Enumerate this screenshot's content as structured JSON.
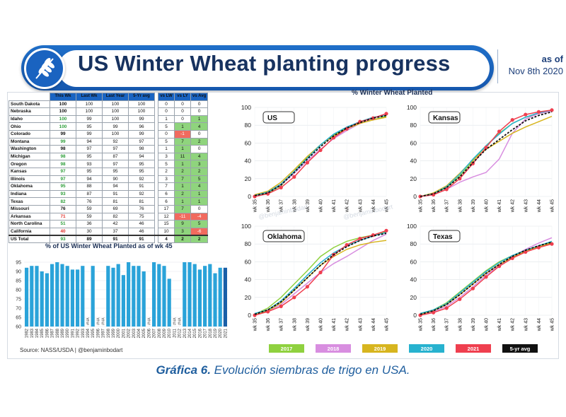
{
  "header": {
    "title": "US Winter Wheat planting progress",
    "asof_line1": "as of",
    "asof_line2": "Nov 8th 2020"
  },
  "table": {
    "headers": [
      "This Wk",
      "Last Wk",
      "Last Year",
      "5-Yr avg",
      "vs LW",
      "vs LY",
      "vs Avg"
    ],
    "rows": [
      {
        "state": "South Dakota",
        "this_wk": "100",
        "last_wk": "100",
        "last_year": "100",
        "avg": "100",
        "vs_lw": "0",
        "vs_ly": "0",
        "vs_avg": "0"
      },
      {
        "state": "Nebraska",
        "this_wk": "100",
        "last_wk": "100",
        "last_year": "100",
        "avg": "100",
        "vs_lw": "0",
        "vs_ly": "0",
        "vs_avg": "0"
      },
      {
        "state": "Idaho",
        "this_wk": "100",
        "last_wk": "99",
        "last_year": "100",
        "avg": "99",
        "vs_lw": "1",
        "vs_ly": "0",
        "vs_avg": "1"
      },
      {
        "state": "Ohio",
        "this_wk": "100",
        "last_wk": "95",
        "last_year": "99",
        "avg": "96",
        "vs_lw": "5",
        "vs_ly": "1",
        "vs_avg": "4"
      },
      {
        "state": "Colorado",
        "this_wk": "99",
        "last_wk": "99",
        "last_year": "100",
        "avg": "99",
        "vs_lw": "0",
        "vs_ly": "-1",
        "vs_avg": "0"
      },
      {
        "state": "Montana",
        "this_wk": "99",
        "last_wk": "94",
        "last_year": "92",
        "avg": "97",
        "vs_lw": "5",
        "vs_ly": "7",
        "vs_avg": "2"
      },
      {
        "state": "Washington",
        "this_wk": "98",
        "last_wk": "97",
        "last_year": "97",
        "avg": "98",
        "vs_lw": "1",
        "vs_ly": "1",
        "vs_avg": "0"
      },
      {
        "state": "Michigan",
        "this_wk": "98",
        "last_wk": "95",
        "last_year": "87",
        "avg": "94",
        "vs_lw": "3",
        "vs_ly": "11",
        "vs_avg": "4"
      },
      {
        "state": "Oregon",
        "this_wk": "98",
        "last_wk": "93",
        "last_year": "97",
        "avg": "95",
        "vs_lw": "5",
        "vs_ly": "1",
        "vs_avg": "3"
      },
      {
        "state": "Kansas",
        "this_wk": "97",
        "last_wk": "95",
        "last_year": "95",
        "avg": "95",
        "vs_lw": "2",
        "vs_ly": "2",
        "vs_avg": "2"
      },
      {
        "state": "Illinois",
        "this_wk": "97",
        "last_wk": "94",
        "last_year": "90",
        "avg": "92",
        "vs_lw": "3",
        "vs_ly": "7",
        "vs_avg": "5"
      },
      {
        "state": "Oklahoma",
        "this_wk": "95",
        "last_wk": "88",
        "last_year": "94",
        "avg": "91",
        "vs_lw": "7",
        "vs_ly": "1",
        "vs_avg": "4"
      },
      {
        "state": "Indiana",
        "this_wk": "93",
        "last_wk": "87",
        "last_year": "91",
        "avg": "92",
        "vs_lw": "6",
        "vs_ly": "2",
        "vs_avg": "1"
      },
      {
        "state": "Texas",
        "this_wk": "82",
        "last_wk": "76",
        "last_year": "81",
        "avg": "81",
        "vs_lw": "6",
        "vs_ly": "1",
        "vs_avg": "1"
      },
      {
        "state": "Missouri",
        "this_wk": "76",
        "last_wk": "59",
        "last_year": "69",
        "avg": "76",
        "vs_lw": "17",
        "vs_ly": "7",
        "vs_avg": "0"
      },
      {
        "state": "Arkansas",
        "this_wk": "71",
        "last_wk": "59",
        "last_year": "82",
        "avg": "75",
        "vs_lw": "12",
        "vs_ly": "-11",
        "vs_avg": "-4"
      },
      {
        "state": "North Carolina",
        "this_wk": "51",
        "last_wk": "36",
        "last_year": "42",
        "avg": "46",
        "vs_lw": "15",
        "vs_ly": "9",
        "vs_avg": "5"
      },
      {
        "state": "California",
        "this_wk": "40",
        "last_wk": "30",
        "last_year": "37",
        "avg": "46",
        "vs_lw": "10",
        "vs_ly": "3",
        "vs_avg": "-6"
      }
    ],
    "total": {
      "state": "US Total",
      "this_wk": "93",
      "last_wk": "89",
      "last_year": "91",
      "avg": "91",
      "vs_lw": "4",
      "vs_ly": "2",
      "vs_avg": "2"
    }
  },
  "colors": {
    "bar": "#2aa3d9",
    "bar_last": "#1a5fa8",
    "pos": "#8fd47d",
    "neg": "#f16a5e",
    "tw_green": "#2e9e3a",
    "tw_red": "#e0302a",
    "s2017": "#8fd13f",
    "s2018": "#d88ee0",
    "s2019": "#d7b51f",
    "s2020": "#27b2cf",
    "s2021": "#ef3f4f",
    "avg": "#111111"
  },
  "bar_title": "% of US Winter Wheat Planted as of wk 45",
  "source": "Source: NASS/USDA | @benjaminbodart",
  "chart_title": "% Winter Wheat Planted",
  "caption_bold": "Gráfica 6.",
  "caption_rest": " Evolución siembras de trigo en USA.",
  "watermark": "@benjaminbodart",
  "chart_data": [
    {
      "type": "bar",
      "title": "% of US Winter Wheat Planted as of wk 45",
      "ylim": [
        60,
        100
      ],
      "yticks": [
        60,
        65,
        70,
        75,
        80,
        85,
        90,
        95
      ],
      "categories": [
        "1982",
        "1983",
        "1984",
        "1985",
        "1986",
        "1987",
        "1988",
        "1989",
        "1990",
        "1991",
        "1992",
        "1993",
        "1994",
        "1995",
        "1996",
        "1997",
        "1998",
        "1999",
        "2000",
        "2001",
        "2002",
        "2003",
        "2004",
        "2005",
        "2006",
        "2007",
        "2008",
        "2009",
        "2010",
        "2011",
        "2012",
        "2013",
        "2014",
        "2015",
        "2016",
        "2017",
        "2018",
        "2019",
        "2020",
        "2021"
      ],
      "values": [
        92,
        93,
        93,
        90,
        89,
        94,
        95,
        94,
        93,
        91,
        91,
        93,
        null,
        93,
        null,
        null,
        93,
        92,
        94,
        88,
        95,
        93,
        93,
        90,
        null,
        95,
        94,
        93,
        86,
        null,
        null,
        95,
        95,
        94,
        91,
        93,
        94,
        89,
        92,
        92
      ],
      "na_label": "#NA"
    },
    {
      "type": "line",
      "title": "US",
      "x": [
        "wk 35",
        "wk 36",
        "wk 37",
        "wk 38",
        "wk 39",
        "wk 40",
        "wk 41",
        "wk 42",
        "wk 43",
        "wk 44",
        "wk 45"
      ],
      "ylim": [
        0,
        100
      ],
      "yticks": [
        0,
        20,
        40,
        60,
        80,
        100
      ],
      "series": [
        {
          "name": "2017",
          "values": [
            1,
            4,
            12,
            28,
            44,
            58,
            69,
            77,
            83,
            86,
            90
          ]
        },
        {
          "name": "2018",
          "values": [
            1,
            5,
            13,
            26,
            40,
            53,
            65,
            74,
            82,
            88,
            93
          ]
        },
        {
          "name": "2019",
          "values": [
            2,
            6,
            16,
            30,
            45,
            58,
            68,
            76,
            82,
            86,
            89
          ]
        },
        {
          "name": "2020",
          "values": [
            1,
            5,
            14,
            28,
            43,
            58,
            70,
            78,
            84,
            89,
            91
          ]
        },
        {
          "name": "2021",
          "values": [
            0,
            3,
            10,
            22,
            38,
            52,
            66,
            76,
            84,
            88,
            93
          ]
        },
        {
          "name": "5-yr avg",
          "values": [
            1,
            4,
            13,
            27,
            42,
            56,
            68,
            77,
            83,
            88,
            91
          ]
        }
      ]
    },
    {
      "type": "line",
      "title": "Kansas",
      "x": [
        "wk 35",
        "wk 36",
        "wk 37",
        "wk 38",
        "wk 39",
        "wk 40",
        "wk 41",
        "wk 42",
        "wk 43",
        "wk 44",
        "wk 45"
      ],
      "ylim": [
        0,
        100
      ],
      "yticks": [
        0,
        20,
        40,
        60,
        80,
        100
      ],
      "series": [
        {
          "name": "2017",
          "values": [
            0,
            3,
            10,
            23,
            40,
            57,
            71,
            82,
            89,
            93,
            96
          ]
        },
        {
          "name": "2018",
          "values": [
            0,
            2,
            8,
            16,
            22,
            27,
            42,
            71,
            87,
            93,
            96
          ]
        },
        {
          "name": "2019",
          "values": [
            0,
            4,
            12,
            26,
            41,
            53,
            62,
            71,
            78,
            84,
            90
          ]
        },
        {
          "name": "2020",
          "values": [
            0,
            3,
            11,
            25,
            42,
            57,
            70,
            82,
            89,
            94,
            97
          ]
        },
        {
          "name": "2021",
          "values": [
            0,
            2,
            8,
            20,
            37,
            55,
            73,
            86,
            92,
            95,
            97
          ]
        },
        {
          "name": "5-yr avg",
          "values": [
            0,
            3,
            10,
            22,
            38,
            53,
            64,
            75,
            85,
            91,
            95
          ]
        }
      ]
    },
    {
      "type": "line",
      "title": "Oklahoma",
      "x": [
        "wk 35",
        "wk 36",
        "wk 37",
        "wk 38",
        "wk 39",
        "wk 40",
        "wk 41",
        "wk 42",
        "wk 43",
        "wk 44",
        "wk 45"
      ],
      "ylim": [
        0,
        100
      ],
      "yticks": [
        0,
        20,
        40,
        60,
        80,
        100
      ],
      "series": [
        {
          "name": "2017",
          "values": [
            1,
            8,
            20,
            35,
            50,
            66,
            76,
            83,
            87,
            90,
            94
          ]
        },
        {
          "name": "2018",
          "values": [
            1,
            5,
            12,
            24,
            36,
            48,
            58,
            66,
            75,
            84,
            91
          ]
        },
        {
          "name": "2019",
          "values": [
            1,
            5,
            14,
            28,
            42,
            56,
            66,
            74,
            79,
            82,
            84
          ]
        },
        {
          "name": "2020",
          "values": [
            2,
            6,
            16,
            30,
            45,
            59,
            70,
            78,
            84,
            89,
            93
          ]
        },
        {
          "name": "2021",
          "values": [
            0,
            4,
            10,
            20,
            32,
            48,
            68,
            79,
            86,
            90,
            95
          ]
        },
        {
          "name": "5-yr avg",
          "values": [
            1,
            6,
            15,
            28,
            42,
            56,
            68,
            77,
            84,
            89,
            92
          ]
        }
      ]
    },
    {
      "type": "line",
      "title": "Texas",
      "x": [
        "wk 35",
        "wk 36",
        "wk 37",
        "wk 38",
        "wk 39",
        "wk 40",
        "wk 41",
        "wk 42",
        "wk 43",
        "wk 44",
        "wk 45"
      ],
      "ylim": [
        0,
        100
      ],
      "yticks": [
        0,
        20,
        40,
        60,
        80,
        100
      ],
      "series": [
        {
          "name": "2017",
          "values": [
            2,
            6,
            14,
            26,
            38,
            50,
            60,
            67,
            73,
            77,
            82
          ]
        },
        {
          "name": "2018",
          "values": [
            1,
            4,
            10,
            20,
            32,
            45,
            56,
            66,
            74,
            81,
            87
          ]
        },
        {
          "name": "2019",
          "values": [
            1,
            5,
            12,
            23,
            35,
            47,
            57,
            65,
            72,
            77,
            81
          ]
        },
        {
          "name": "2020",
          "values": [
            2,
            6,
            13,
            25,
            37,
            49,
            59,
            67,
            73,
            78,
            83
          ]
        },
        {
          "name": "2021",
          "values": [
            0,
            3,
            8,
            18,
            30,
            43,
            55,
            64,
            71,
            76,
            80
          ]
        },
        {
          "name": "5-yr avg",
          "values": [
            1,
            5,
            12,
            23,
            35,
            47,
            57,
            66,
            73,
            78,
            82
          ]
        }
      ]
    }
  ]
}
